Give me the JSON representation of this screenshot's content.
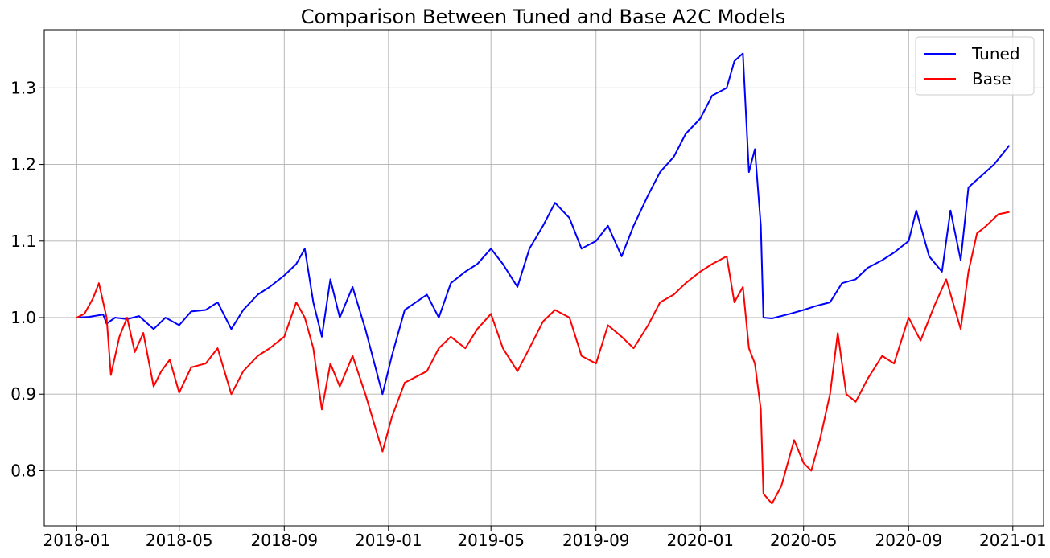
{
  "chart_data": {
    "type": "line",
    "title": "Comparison Between Tuned and Base A2C Models",
    "xlabel": "",
    "ylabel": "",
    "x_range": [
      "2017-11-24",
      "2021-02-06"
    ],
    "x_ticks": [
      "2018-01-01",
      "2018-05-01",
      "2018-09-01",
      "2019-01-01",
      "2019-05-01",
      "2019-09-01",
      "2020-01-01",
      "2020-05-01",
      "2020-09-01",
      "2021-01-01"
    ],
    "x_tick_labels": [
      "2018-01",
      "2018-05",
      "2018-09",
      "2019-01",
      "2019-05",
      "2019-09",
      "2020-01",
      "2020-05",
      "2020-09",
      "2021-01"
    ],
    "ylim": [
      0.728,
      1.376
    ],
    "y_ticks": [
      0.8,
      0.9,
      1.0,
      1.1,
      1.2,
      1.3
    ],
    "y_tick_labels": [
      "0.8",
      "0.9",
      "1.0",
      "1.1",
      "1.2",
      "1.3"
    ],
    "grid": true,
    "legend_position": "top-right",
    "series": [
      {
        "name": "Tuned",
        "color": "#0000ff",
        "points": [
          [
            "2018-01-01",
            1.0
          ],
          [
            "2018-01-15",
            1.001
          ],
          [
            "2018-02-01",
            1.004
          ],
          [
            "2018-02-05",
            0.992
          ],
          [
            "2018-02-15",
            1.0
          ],
          [
            "2018-03-01",
            0.998
          ],
          [
            "2018-03-15",
            1.002
          ],
          [
            "2018-04-01",
            0.985
          ],
          [
            "2018-04-15",
            1.0
          ],
          [
            "2018-05-01",
            0.99
          ],
          [
            "2018-05-15",
            1.008
          ],
          [
            "2018-06-01",
            1.01
          ],
          [
            "2018-06-15",
            1.02
          ],
          [
            "2018-07-01",
            0.985
          ],
          [
            "2018-07-15",
            1.01
          ],
          [
            "2018-08-01",
            1.03
          ],
          [
            "2018-08-15",
            1.04
          ],
          [
            "2018-09-01",
            1.055
          ],
          [
            "2018-09-15",
            1.07
          ],
          [
            "2018-09-25",
            1.09
          ],
          [
            "2018-10-05",
            1.02
          ],
          [
            "2018-10-15",
            0.975
          ],
          [
            "2018-10-25",
            1.05
          ],
          [
            "2018-11-05",
            1.0
          ],
          [
            "2018-11-20",
            1.04
          ],
          [
            "2018-12-05",
            0.985
          ],
          [
            "2018-12-25",
            0.9
          ],
          [
            "2019-01-05",
            0.95
          ],
          [
            "2019-01-20",
            1.01
          ],
          [
            "2019-02-15",
            1.03
          ],
          [
            "2019-03-01",
            1.0
          ],
          [
            "2019-03-15",
            1.045
          ],
          [
            "2019-04-01",
            1.06
          ],
          [
            "2019-04-15",
            1.07
          ],
          [
            "2019-05-01",
            1.09
          ],
          [
            "2019-05-15",
            1.07
          ],
          [
            "2019-06-01",
            1.04
          ],
          [
            "2019-06-15",
            1.09
          ],
          [
            "2019-07-01",
            1.12
          ],
          [
            "2019-07-15",
            1.15
          ],
          [
            "2019-08-01",
            1.13
          ],
          [
            "2019-08-15",
            1.09
          ],
          [
            "2019-09-01",
            1.1
          ],
          [
            "2019-09-15",
            1.12
          ],
          [
            "2019-10-01",
            1.08
          ],
          [
            "2019-10-15",
            1.12
          ],
          [
            "2019-11-01",
            1.16
          ],
          [
            "2019-11-15",
            1.19
          ],
          [
            "2019-12-01",
            1.21
          ],
          [
            "2019-12-15",
            1.24
          ],
          [
            "2020-01-01",
            1.26
          ],
          [
            "2020-01-15",
            1.29
          ],
          [
            "2020-02-01",
            1.3
          ],
          [
            "2020-02-10",
            1.335
          ],
          [
            "2020-02-20",
            1.345
          ],
          [
            "2020-02-27",
            1.19
          ],
          [
            "2020-03-05",
            1.22
          ],
          [
            "2020-03-12",
            1.12
          ],
          [
            "2020-03-15",
            1.0
          ],
          [
            "2020-03-25",
            0.999
          ],
          [
            "2020-04-15",
            1.005
          ],
          [
            "2020-05-01",
            1.01
          ],
          [
            "2020-05-15",
            1.015
          ],
          [
            "2020-06-01",
            1.02
          ],
          [
            "2020-06-15",
            1.045
          ],
          [
            "2020-07-01",
            1.05
          ],
          [
            "2020-07-15",
            1.065
          ],
          [
            "2020-08-01",
            1.075
          ],
          [
            "2020-08-15",
            1.085
          ],
          [
            "2020-09-01",
            1.1
          ],
          [
            "2020-09-10",
            1.14
          ],
          [
            "2020-09-25",
            1.08
          ],
          [
            "2020-10-10",
            1.06
          ],
          [
            "2020-10-20",
            1.14
          ],
          [
            "2020-11-01",
            1.075
          ],
          [
            "2020-11-10",
            1.17
          ],
          [
            "2020-11-25",
            1.185
          ],
          [
            "2020-12-10",
            1.2
          ],
          [
            "2020-12-28",
            1.225
          ]
        ]
      },
      {
        "name": "Base",
        "color": "#ff0000",
        "points": [
          [
            "2018-01-01",
            1.0
          ],
          [
            "2018-01-10",
            1.005
          ],
          [
            "2018-01-20",
            1.025
          ],
          [
            "2018-01-27",
            1.045
          ],
          [
            "2018-02-05",
            1.0
          ],
          [
            "2018-02-10",
            0.925
          ],
          [
            "2018-02-20",
            0.975
          ],
          [
            "2018-03-01",
            1.0
          ],
          [
            "2018-03-10",
            0.955
          ],
          [
            "2018-03-20",
            0.98
          ],
          [
            "2018-04-01",
            0.91
          ],
          [
            "2018-04-10",
            0.93
          ],
          [
            "2018-04-20",
            0.945
          ],
          [
            "2018-05-01",
            0.902
          ],
          [
            "2018-05-15",
            0.935
          ],
          [
            "2018-06-01",
            0.94
          ],
          [
            "2018-06-15",
            0.96
          ],
          [
            "2018-07-01",
            0.9
          ],
          [
            "2018-07-15",
            0.93
          ],
          [
            "2018-08-01",
            0.95
          ],
          [
            "2018-08-15",
            0.96
          ],
          [
            "2018-09-01",
            0.975
          ],
          [
            "2018-09-15",
            1.02
          ],
          [
            "2018-09-25",
            1.0
          ],
          [
            "2018-10-05",
            0.96
          ],
          [
            "2018-10-15",
            0.88
          ],
          [
            "2018-10-25",
            0.94
          ],
          [
            "2018-11-05",
            0.91
          ],
          [
            "2018-11-20",
            0.95
          ],
          [
            "2018-12-05",
            0.9
          ],
          [
            "2018-12-25",
            0.825
          ],
          [
            "2019-01-05",
            0.87
          ],
          [
            "2019-01-20",
            0.915
          ],
          [
            "2019-02-15",
            0.93
          ],
          [
            "2019-03-01",
            0.96
          ],
          [
            "2019-03-15",
            0.975
          ],
          [
            "2019-04-01",
            0.96
          ],
          [
            "2019-04-15",
            0.985
          ],
          [
            "2019-05-01",
            1.005
          ],
          [
            "2019-05-15",
            0.96
          ],
          [
            "2019-06-01",
            0.93
          ],
          [
            "2019-06-15",
            0.96
          ],
          [
            "2019-07-01",
            0.995
          ],
          [
            "2019-07-15",
            1.01
          ],
          [
            "2019-08-01",
            1.0
          ],
          [
            "2019-08-15",
            0.95
          ],
          [
            "2019-09-01",
            0.94
          ],
          [
            "2019-09-15",
            0.99
          ],
          [
            "2019-10-01",
            0.975
          ],
          [
            "2019-10-15",
            0.96
          ],
          [
            "2019-11-01",
            0.99
          ],
          [
            "2019-11-15",
            1.02
          ],
          [
            "2019-12-01",
            1.03
          ],
          [
            "2019-12-15",
            1.045
          ],
          [
            "2020-01-01",
            1.06
          ],
          [
            "2020-01-15",
            1.07
          ],
          [
            "2020-02-01",
            1.08
          ],
          [
            "2020-02-10",
            1.02
          ],
          [
            "2020-02-20",
            1.04
          ],
          [
            "2020-02-27",
            0.96
          ],
          [
            "2020-03-05",
            0.94
          ],
          [
            "2020-03-12",
            0.88
          ],
          [
            "2020-03-15",
            0.77
          ],
          [
            "2020-03-25",
            0.757
          ],
          [
            "2020-04-05",
            0.78
          ],
          [
            "2020-04-20",
            0.84
          ],
          [
            "2020-05-01",
            0.81
          ],
          [
            "2020-05-10",
            0.8
          ],
          [
            "2020-05-20",
            0.84
          ],
          [
            "2020-06-01",
            0.9
          ],
          [
            "2020-06-10",
            0.98
          ],
          [
            "2020-06-20",
            0.9
          ],
          [
            "2020-07-01",
            0.89
          ],
          [
            "2020-07-15",
            0.92
          ],
          [
            "2020-08-01",
            0.95
          ],
          [
            "2020-08-15",
            0.94
          ],
          [
            "2020-09-01",
            1.0
          ],
          [
            "2020-09-15",
            0.97
          ],
          [
            "2020-10-01",
            1.015
          ],
          [
            "2020-10-15",
            1.05
          ],
          [
            "2020-11-01",
            0.985
          ],
          [
            "2020-11-10",
            1.06
          ],
          [
            "2020-11-20",
            1.11
          ],
          [
            "2020-12-01",
            1.12
          ],
          [
            "2020-12-15",
            1.135
          ],
          [
            "2020-12-28",
            1.138
          ]
        ]
      }
    ]
  }
}
